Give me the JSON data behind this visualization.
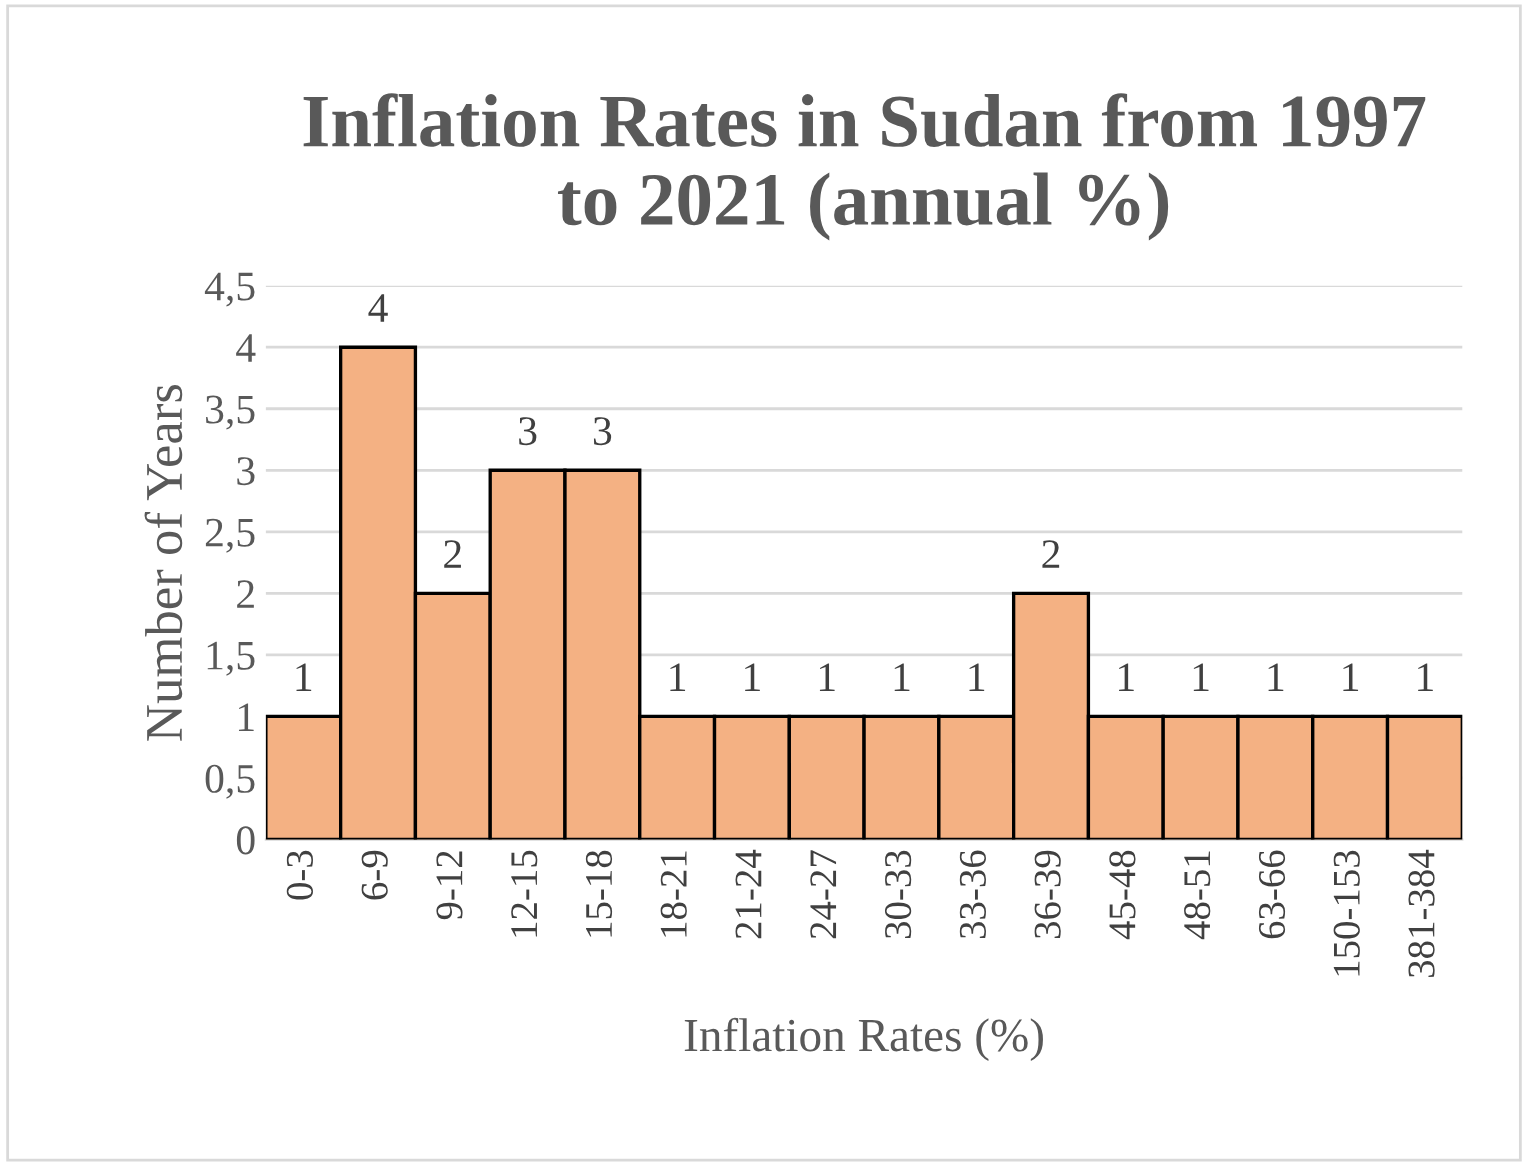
{
  "chart_data": {
    "type": "bar",
    "title": "Inflation Rates in Sudan from 1997\nto 2021 (annual %)",
    "xlabel": "Inflation Rates (%)",
    "ylabel": "Number of Years",
    "categories": [
      "0-3",
      "6-9",
      "9-12",
      "12-15",
      "15-18",
      "18-21",
      "21-24",
      "24-27",
      "30-33",
      "33-36",
      "36-39",
      "45-48",
      "48-51",
      "63-66",
      "150-153",
      "381-384"
    ],
    "values": [
      1,
      4,
      2,
      3,
      3,
      1,
      1,
      1,
      1,
      1,
      2,
      1,
      1,
      1,
      1,
      1
    ],
    "color": "#f4b183",
    "ylim": [
      0,
      4.5
    ],
    "yticks": [
      0,
      {
        "value": 0.5,
        "label": "0,5"
      },
      1,
      {
        "value": 1.5,
        "label": "1,5"
      },
      2,
      {
        "value": 2.5,
        "label": "2,5"
      },
      3,
      {
        "value": 3.5,
        "label": "3,5"
      },
      4,
      {
        "value": 4.5,
        "label": "4,5"
      }
    ],
    "grid": "y",
    "data_labels": true
  }
}
